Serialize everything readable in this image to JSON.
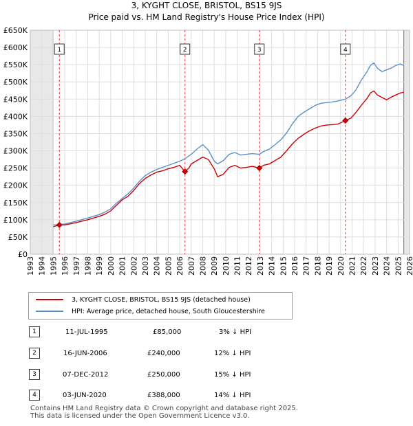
{
  "title_line1": "3, KYGHT CLOSE, BRISTOL, BS15 9JS",
  "title_line2": "Price paid vs. HM Land Registry's House Price Index (HPI)",
  "chart_data": {
    "type": "line",
    "ylim": [
      0,
      650000
    ],
    "xlim": [
      1993,
      2026
    ],
    "y_ticks": [
      0,
      50000,
      100000,
      150000,
      200000,
      250000,
      300000,
      350000,
      400000,
      450000,
      500000,
      550000,
      600000,
      650000
    ],
    "y_tick_labels": [
      "£0",
      "£50K",
      "£100K",
      "£150K",
      "£200K",
      "£250K",
      "£300K",
      "£350K",
      "£400K",
      "£450K",
      "£500K",
      "£550K",
      "£600K",
      "£650K"
    ],
    "x_ticks": [
      1993,
      1994,
      1995,
      1996,
      1997,
      1998,
      1999,
      2000,
      2001,
      2002,
      2003,
      2004,
      2005,
      2006,
      2007,
      2008,
      2009,
      2010,
      2011,
      2012,
      2013,
      2014,
      2015,
      2016,
      2017,
      2018,
      2019,
      2020,
      2021,
      2022,
      2023,
      2024,
      2025,
      2026
    ],
    "x_tick_labels": [
      "1993",
      "1994",
      "1995",
      "1996",
      "1997",
      "1998",
      "1999",
      "2000",
      "2001",
      "2002",
      "2003",
      "2004",
      "2005",
      "2006",
      "2007",
      "2008",
      "2009",
      "2010",
      "2011",
      "2012",
      "2013",
      "2014",
      "2015",
      "2016",
      "2017",
      "2018",
      "2019",
      "2020",
      "2021",
      "2022",
      "2023",
      "2024",
      "2025",
      "2026"
    ],
    "data_range": [
      1995.0,
      2025.5
    ],
    "series": [
      {
        "name": "3, KYGHT CLOSE, BRISTOL, BS15 9JS (detached house)",
        "color": "#cc0000",
        "x": [
          1995.0,
          1995.5,
          1996.0,
          1997.0,
          1998.0,
          1999.0,
          1999.5,
          2000.0,
          2000.5,
          2001.0,
          2001.5,
          2002.0,
          2002.5,
          2003.0,
          2003.5,
          2004.0,
          2004.5,
          2005.0,
          2005.5,
          2006.0,
          2006.45,
          2006.8,
          2007.0,
          2007.5,
          2008.0,
          2008.5,
          2009.0,
          2009.3,
          2009.8,
          2010.3,
          2010.8,
          2011.3,
          2011.8,
          2012.3,
          2012.93,
          2013.3,
          2013.8,
          2014.3,
          2014.8,
          2015.3,
          2015.8,
          2016.3,
          2016.8,
          2017.3,
          2017.8,
          2018.3,
          2018.8,
          2019.3,
          2019.8,
          2020.42,
          2020.9,
          2021.3,
          2021.8,
          2022.3,
          2022.6,
          2022.9,
          2023.2,
          2023.6,
          2024.0,
          2024.4,
          2024.8,
          2025.2,
          2025.5
        ],
        "y": [
          80000,
          85000,
          85000,
          92000,
          100000,
          110000,
          116000,
          126000,
          142000,
          158000,
          168000,
          185000,
          205000,
          220000,
          230000,
          238000,
          242000,
          248000,
          252000,
          258000,
          240000,
          250000,
          262000,
          272000,
          282000,
          275000,
          248000,
          225000,
          232000,
          252000,
          258000,
          250000,
          252000,
          255000,
          250000,
          258000,
          262000,
          272000,
          282000,
          300000,
          320000,
          336000,
          348000,
          358000,
          366000,
          372000,
          375000,
          376000,
          378000,
          388000,
          395000,
          410000,
          432000,
          452000,
          468000,
          474000,
          462000,
          455000,
          448000,
          456000,
          462000,
          468000,
          470000
        ]
      },
      {
        "name": "HPI: Average price, detached house, South Gloucestershire",
        "color": "#5b8fc7",
        "x": [
          1995.0,
          1995.5,
          1996.0,
          1997.0,
          1998.0,
          1999.0,
          1999.5,
          2000.0,
          2000.5,
          2001.0,
          2001.5,
          2002.0,
          2002.5,
          2003.0,
          2003.5,
          2004.0,
          2004.5,
          2005.0,
          2005.5,
          2006.0,
          2006.5,
          2007.0,
          2007.5,
          2008.0,
          2008.5,
          2009.0,
          2009.3,
          2009.8,
          2010.3,
          2010.8,
          2011.3,
          2011.8,
          2012.3,
          2012.93,
          2013.3,
          2013.8,
          2014.3,
          2014.8,
          2015.3,
          2015.8,
          2016.3,
          2016.8,
          2017.3,
          2017.8,
          2018.3,
          2018.8,
          2019.3,
          2019.8,
          2020.42,
          2020.9,
          2021.3,
          2021.8,
          2022.3,
          2022.6,
          2022.9,
          2023.2,
          2023.6,
          2024.0,
          2024.4,
          2024.8,
          2025.2,
          2025.5
        ],
        "y": [
          85000,
          86000,
          88000,
          96000,
          105000,
          115000,
          122000,
          132000,
          148000,
          162000,
          175000,
          192000,
          212000,
          228000,
          238000,
          246000,
          252000,
          258000,
          264000,
          270000,
          278000,
          290000,
          305000,
          318000,
          302000,
          270000,
          262000,
          272000,
          290000,
          295000,
          288000,
          290000,
          292000,
          290000,
          298000,
          305000,
          318000,
          332000,
          352000,
          378000,
          400000,
          412000,
          422000,
          432000,
          438000,
          440000,
          442000,
          445000,
          450000,
          460000,
          475000,
          505000,
          530000,
          548000,
          555000,
          540000,
          530000,
          535000,
          540000,
          548000,
          552000,
          548000
        ]
      }
    ],
    "transactions": [
      {
        "label": "1",
        "date": "11-JUL-1995",
        "year": 1995.53,
        "price": 85000,
        "price_label": "£85,000",
        "hpi": "3% ↓ HPI"
      },
      {
        "label": "2",
        "date": "16-JUN-2006",
        "year": 2006.46,
        "price": 240000,
        "price_label": "£240,000",
        "hpi": "12% ↓ HPI"
      },
      {
        "label": "3",
        "date": "07-DEC-2012",
        "year": 2012.93,
        "price": 250000,
        "price_label": "£250,000",
        "hpi": "15% ↓ HPI"
      },
      {
        "label": "4",
        "date": "03-JUN-2020",
        "year": 2020.42,
        "price": 388000,
        "price_label": "£388,000",
        "hpi": "14% ↓ HPI"
      }
    ]
  },
  "legend": {
    "red_label": "3, KYGHT CLOSE, BRISTOL, BS15 9JS (detached house)",
    "blue_label": "HPI: Average price, detached house, South Gloucestershire",
    "red_color": "#cc0000",
    "blue_color": "#5b8fc7"
  },
  "footer": {
    "line1": "Contains HM Land Registry data © Crown copyright and database right 2025.",
    "line2": "This data is licensed under the Open Government Licence v3.0."
  }
}
